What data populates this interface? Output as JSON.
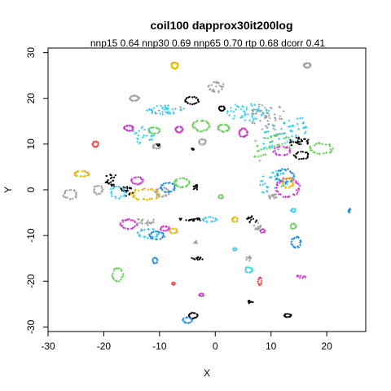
{
  "chart_data": {
    "type": "scatter",
    "title": "coil100 dapprox30it200log",
    "subtitle": "nnp15 0.64 nnp30 0.69 nnp65 0.70 rtp 0.68 dcorr 0.41",
    "xlabel": "X",
    "ylabel": "Y",
    "xlim": [
      -30,
      27
    ],
    "ylim": [
      -31,
      31
    ],
    "x_ticks": [
      -30,
      -20,
      -10,
      0,
      10,
      20
    ],
    "y_ticks": [
      -30,
      -20,
      -10,
      0,
      10,
      20,
      30
    ],
    "grid": false,
    "legend": "none",
    "palette": {
      "black": "#000000",
      "gray": "#9e9e9e",
      "yellow": "#e6b800",
      "cyan": "#33ccee",
      "blue": "#2288dd",
      "magenta": "#cc33cc",
      "green": "#66cc55",
      "red": "#ee4444"
    },
    "clusters": [
      {
        "color": "gray",
        "cx": 16.5,
        "cy": 27.2,
        "rx": 0.6,
        "ry": 0.5,
        "n": 20,
        "shape": "ring"
      },
      {
        "color": "yellow",
        "cx": -7.3,
        "cy": 27.2,
        "rx": 0.6,
        "ry": 0.7,
        "n": 20,
        "shape": "ring"
      },
      {
        "color": "gray",
        "cx": 0.2,
        "cy": 22.5,
        "rx": 1.5,
        "ry": 1.2,
        "n": 25,
        "shape": "blob"
      },
      {
        "color": "gray",
        "cx": -14.5,
        "cy": 20,
        "rx": 0.8,
        "ry": 0.6,
        "n": 18,
        "shape": "ring"
      },
      {
        "color": "black",
        "cx": -4.2,
        "cy": 19.5,
        "rx": 1.2,
        "ry": 0.8,
        "n": 22,
        "shape": "ring"
      },
      {
        "color": "black",
        "cx": 1.2,
        "cy": 17.8,
        "rx": 0.5,
        "ry": 0.5,
        "n": 14,
        "shape": "ring"
      },
      {
        "color": "cyan",
        "cx": -9,
        "cy": 17.5,
        "rx": 3.5,
        "ry": 1,
        "n": 40,
        "shape": "blob"
      },
      {
        "color": "cyan",
        "cx": 6,
        "cy": 17,
        "rx": 4,
        "ry": 2,
        "n": 55,
        "shape": "blob"
      },
      {
        "color": "gray",
        "cx": 9.5,
        "cy": 16,
        "rx": 3.5,
        "ry": 3,
        "n": 45,
        "shape": "blob"
      },
      {
        "color": "magenta",
        "cx": -15.5,
        "cy": 13.5,
        "rx": 0.8,
        "ry": 0.6,
        "n": 18,
        "shape": "ring"
      },
      {
        "color": "green",
        "cx": -11,
        "cy": 13,
        "rx": 1,
        "ry": 0.7,
        "n": 18,
        "shape": "ring"
      },
      {
        "color": "cyan",
        "cx": -13,
        "cy": 12,
        "rx": 2,
        "ry": 2,
        "n": 25,
        "shape": "blob"
      },
      {
        "color": "magenta",
        "cx": -6.5,
        "cy": 13.2,
        "rx": 0.7,
        "ry": 0.6,
        "n": 16,
        "shape": "ring"
      },
      {
        "color": "green",
        "cx": -2.5,
        "cy": 14,
        "rx": 1.5,
        "ry": 1.2,
        "n": 25,
        "shape": "ring"
      },
      {
        "color": "green",
        "cx": 1.5,
        "cy": 13.5,
        "rx": 1,
        "ry": 0.8,
        "n": 20,
        "shape": "ring"
      },
      {
        "color": "magenta",
        "cx": 5,
        "cy": 12.5,
        "rx": 0.8,
        "ry": 0.9,
        "n": 20,
        "shape": "ring"
      },
      {
        "color": "cyan",
        "cx": 12.5,
        "cy": 12.5,
        "rx": 4,
        "ry": 2.5,
        "n": 60,
        "shape": "stripes"
      },
      {
        "color": "green",
        "cx": 10.5,
        "cy": 9.5,
        "rx": 3.5,
        "ry": 2.5,
        "n": 40,
        "shape": "stripes"
      },
      {
        "color": "magenta",
        "cx": 12,
        "cy": 8.5,
        "rx": 1.5,
        "ry": 1,
        "n": 20,
        "shape": "ring"
      },
      {
        "color": "black",
        "cx": 15,
        "cy": 10.5,
        "rx": 2,
        "ry": 1,
        "n": 30,
        "shape": "blob"
      },
      {
        "color": "black",
        "cx": 15.5,
        "cy": 7.5,
        "rx": 1.3,
        "ry": 0.8,
        "n": 20,
        "shape": "ring"
      },
      {
        "color": "green",
        "cx": 19,
        "cy": 9,
        "rx": 2,
        "ry": 1.2,
        "n": 25,
        "shape": "ring"
      },
      {
        "color": "red",
        "cx": -21.5,
        "cy": 10,
        "rx": 0.5,
        "ry": 0.6,
        "n": 14,
        "shape": "ring"
      },
      {
        "color": "gray",
        "cx": -10.5,
        "cy": 9.5,
        "rx": 0.7,
        "ry": 0.5,
        "n": 14,
        "shape": "ring"
      },
      {
        "color": "black",
        "cx": -10.2,
        "cy": 9.8,
        "rx": 0.3,
        "ry": 0.3,
        "n": 8,
        "shape": "blob"
      },
      {
        "color": "black",
        "cx": -4,
        "cy": 9,
        "rx": 0.3,
        "ry": 0.3,
        "n": 8,
        "shape": "blob"
      },
      {
        "color": "gray",
        "cx": -2.3,
        "cy": 10.5,
        "rx": 0.6,
        "ry": 0.6,
        "n": 14,
        "shape": "ring"
      },
      {
        "color": "yellow",
        "cx": -24,
        "cy": 3.5,
        "rx": 1.3,
        "ry": 0.6,
        "n": 22,
        "shape": "ring"
      },
      {
        "color": "black",
        "cx": -18.5,
        "cy": 2,
        "rx": 1.5,
        "ry": 1.5,
        "n": 25,
        "shape": "blob"
      },
      {
        "color": "black",
        "cx": -16,
        "cy": -0.5,
        "rx": 1.3,
        "ry": 1.3,
        "n": 25,
        "shape": "blob"
      },
      {
        "color": "cyan",
        "cx": -17.5,
        "cy": -0.5,
        "rx": 1.3,
        "ry": 1.3,
        "n": 20,
        "shape": "ring"
      },
      {
        "color": "gray",
        "cx": -26,
        "cy": -1,
        "rx": 1.2,
        "ry": 1,
        "n": 20,
        "shape": "ring"
      },
      {
        "color": "gray",
        "cx": -21,
        "cy": 0,
        "rx": 0.8,
        "ry": 1,
        "n": 16,
        "shape": "ring"
      },
      {
        "color": "magenta",
        "cx": -14,
        "cy": 2,
        "rx": 1,
        "ry": 0.8,
        "n": 18,
        "shape": "ring"
      },
      {
        "color": "yellow",
        "cx": -12.5,
        "cy": -1,
        "rx": 2.5,
        "ry": 1.2,
        "n": 35,
        "shape": "ring"
      },
      {
        "color": "gray",
        "cx": -9.5,
        "cy": -0.5,
        "rx": 1.2,
        "ry": 1,
        "n": 20,
        "shape": "ring"
      },
      {
        "color": "blue",
        "cx": -8.5,
        "cy": 0.5,
        "rx": 1.3,
        "ry": 1,
        "n": 22,
        "shape": "ring"
      },
      {
        "color": "green",
        "cx": -6,
        "cy": 1.5,
        "rx": 1.3,
        "ry": 1,
        "n": 22,
        "shape": "ring"
      },
      {
        "color": "black",
        "cx": -3.5,
        "cy": 0.5,
        "rx": 0.4,
        "ry": 0.8,
        "n": 12,
        "shape": "blob"
      },
      {
        "color": "green",
        "cx": 1,
        "cy": -1.5,
        "rx": 0.4,
        "ry": 0.4,
        "n": 8,
        "shape": "ring"
      },
      {
        "color": "cyan",
        "cx": 10.5,
        "cy": 2,
        "rx": 2.5,
        "ry": 2,
        "n": 40,
        "shape": "stripes"
      },
      {
        "color": "magenta",
        "cx": 13,
        "cy": 0.5,
        "rx": 2,
        "ry": 2,
        "n": 35,
        "shape": "ring"
      },
      {
        "color": "blue",
        "cx": 12.5,
        "cy": 3,
        "rx": 1.5,
        "ry": 1.5,
        "n": 25,
        "shape": "ring"
      },
      {
        "color": "yellow",
        "cx": 13,
        "cy": 1.5,
        "rx": 1,
        "ry": 1,
        "n": 20,
        "shape": "ring"
      },
      {
        "color": "gray",
        "cx": 10.5,
        "cy": -1.5,
        "rx": 1,
        "ry": 0.6,
        "n": 14,
        "shape": "blob"
      },
      {
        "color": "blue",
        "cx": 24,
        "cy": -4.5,
        "rx": 0.3,
        "ry": 0.5,
        "n": 10,
        "shape": "blob"
      },
      {
        "color": "magenta",
        "cx": -15.5,
        "cy": -7.5,
        "rx": 1.5,
        "ry": 1,
        "n": 25,
        "shape": "ring"
      },
      {
        "color": "cyan",
        "cx": -12,
        "cy": -9.5,
        "rx": 1.8,
        "ry": 1,
        "n": 25,
        "shape": "ring"
      },
      {
        "color": "blue",
        "cx": -10.5,
        "cy": -10,
        "rx": 1.3,
        "ry": 0.8,
        "n": 20,
        "shape": "ring"
      },
      {
        "color": "magenta",
        "cx": -9,
        "cy": -8.5,
        "rx": 0.8,
        "ry": 0.5,
        "n": 14,
        "shape": "ring"
      },
      {
        "color": "yellow",
        "cx": -7.5,
        "cy": -9,
        "rx": 0.7,
        "ry": 0.5,
        "n": 12,
        "shape": "ring"
      },
      {
        "color": "gray",
        "cx": -12.5,
        "cy": -7,
        "rx": 2,
        "ry": 1,
        "n": 20,
        "shape": "blob"
      },
      {
        "color": "black",
        "cx": -4.5,
        "cy": -6.5,
        "rx": 2,
        "ry": 0.3,
        "n": 22,
        "shape": "line"
      },
      {
        "color": "cyan",
        "cx": -1,
        "cy": -6.5,
        "rx": 1.2,
        "ry": 0.5,
        "n": 16,
        "shape": "ring"
      },
      {
        "color": "yellow",
        "cx": 3.5,
        "cy": -6.5,
        "rx": 0.5,
        "ry": 0.5,
        "n": 10,
        "shape": "ring"
      },
      {
        "color": "black",
        "cx": 6.5,
        "cy": -6.5,
        "rx": 1,
        "ry": 0.8,
        "n": 16,
        "shape": "blob"
      },
      {
        "color": "gray",
        "cx": 7.5,
        "cy": -8,
        "rx": 0.8,
        "ry": 0.8,
        "n": 14,
        "shape": "blob"
      },
      {
        "color": "cyan",
        "cx": 14,
        "cy": -4.5,
        "rx": 0.4,
        "ry": 0.4,
        "n": 8,
        "shape": "ring"
      },
      {
        "color": "green",
        "cx": 14,
        "cy": -8,
        "rx": 0.5,
        "ry": 0.6,
        "n": 10,
        "shape": "ring"
      },
      {
        "color": "magenta",
        "cx": 8.5,
        "cy": -9,
        "rx": 0.4,
        "ry": 0.4,
        "n": 8,
        "shape": "ring"
      },
      {
        "color": "blue",
        "cx": 14.5,
        "cy": -11.5,
        "rx": 0.8,
        "ry": 1.2,
        "n": 18,
        "shape": "ring"
      },
      {
        "color": "gray",
        "cx": -3.5,
        "cy": -11.5,
        "rx": 0.3,
        "ry": 0.3,
        "n": 6,
        "shape": "blob"
      },
      {
        "color": "blue",
        "cx": -10.8,
        "cy": -15.5,
        "rx": 0.4,
        "ry": 0.6,
        "n": 10,
        "shape": "ring"
      },
      {
        "color": "black",
        "cx": -3.5,
        "cy": -15,
        "rx": 1.2,
        "ry": 0.3,
        "n": 14,
        "shape": "line"
      },
      {
        "color": "cyan",
        "cx": 3.5,
        "cy": -13,
        "rx": 0.3,
        "ry": 0.3,
        "n": 6,
        "shape": "ring"
      },
      {
        "color": "gray",
        "cx": 6,
        "cy": -15,
        "rx": 0.6,
        "ry": 0.6,
        "n": 10,
        "shape": "blob"
      },
      {
        "color": "green",
        "cx": -17.5,
        "cy": -18.5,
        "rx": 1,
        "ry": 1.5,
        "n": 18,
        "shape": "ring"
      },
      {
        "color": "cyan",
        "cx": 6,
        "cy": -17.5,
        "rx": 0.6,
        "ry": 0.6,
        "n": 12,
        "shape": "ring"
      },
      {
        "color": "red",
        "cx": 8,
        "cy": -20,
        "rx": 0.3,
        "ry": 0.8,
        "n": 10,
        "shape": "ring"
      },
      {
        "color": "magenta",
        "cx": 15.5,
        "cy": -19,
        "rx": 1,
        "ry": 0.3,
        "n": 10,
        "shape": "line"
      },
      {
        "color": "red",
        "cx": -7.5,
        "cy": -20.5,
        "rx": 0.3,
        "ry": 0.3,
        "n": 6,
        "shape": "ring"
      },
      {
        "color": "magenta",
        "cx": -2.5,
        "cy": -23,
        "rx": 0.4,
        "ry": 0.3,
        "n": 8,
        "shape": "ring"
      },
      {
        "color": "black",
        "cx": 6,
        "cy": -24.5,
        "rx": 0.8,
        "ry": 0.3,
        "n": 10,
        "shape": "line"
      },
      {
        "color": "black",
        "cx": -4,
        "cy": -27.5,
        "rx": 0.8,
        "ry": 0.6,
        "n": 16,
        "shape": "ring"
      },
      {
        "color": "blue",
        "cx": -5,
        "cy": -28.5,
        "rx": 0.8,
        "ry": 0.6,
        "n": 14,
        "shape": "ring"
      },
      {
        "color": "black",
        "cx": 13,
        "cy": -27.5,
        "rx": 0.6,
        "ry": 0.4,
        "n": 14,
        "shape": "ring"
      }
    ]
  }
}
